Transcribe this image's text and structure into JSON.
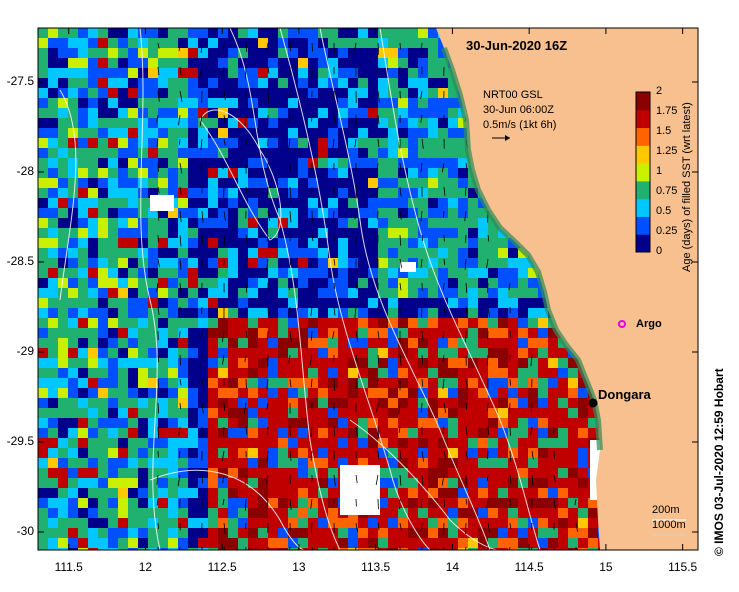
{
  "map": {
    "title": "30-Jun-2020 16Z",
    "info_lines": [
      "NRT00 GSL",
      "30-Jun 06:00Z",
      "0.5m/s (1kt 6h)"
    ],
    "credit": "© IMOS 03-Jul-2020 12:59 Hobart",
    "lon_ticks": [
      "111.5",
      "12",
      "112.5",
      "13",
      "113.5",
      "14",
      "114.5",
      "15",
      "115.5"
    ],
    "lat_ticks": [
      "-27.5",
      "-28",
      "-28.5",
      "-29",
      "-29.5",
      "-30"
    ],
    "lon_range": [
      111.3,
      115.6
    ],
    "lat_range": [
      -27.2,
      -30.1
    ],
    "places": [
      {
        "name": "Dongara",
        "lon": 114.93,
        "lat": -29.25,
        "marker": "black-dot"
      },
      {
        "name": "Argo",
        "lon": 115.13,
        "lat": -28.82,
        "marker": "magenta-circle"
      }
    ],
    "scale_labels": [
      "200m",
      "1000m"
    ],
    "colors": {
      "land": "#f8c08e",
      "coast_shelf": "#2e8b57",
      "contour": "#ffffff",
      "argo": "#e000e0"
    }
  },
  "colorbar": {
    "title": "Age (days) of filled SST (wrt latest)",
    "ticks": [
      "2",
      "1.75",
      "1.5",
      "1.25",
      "1",
      "0.75",
      "0.5",
      "0.25",
      "0"
    ],
    "range": [
      0,
      2
    ],
    "colors": [
      "#00008b",
      "#0050ff",
      "#00c8ff",
      "#20b070",
      "#c8f000",
      "#ffc800",
      "#ff6400",
      "#c00000",
      "#8b0000"
    ]
  }
}
